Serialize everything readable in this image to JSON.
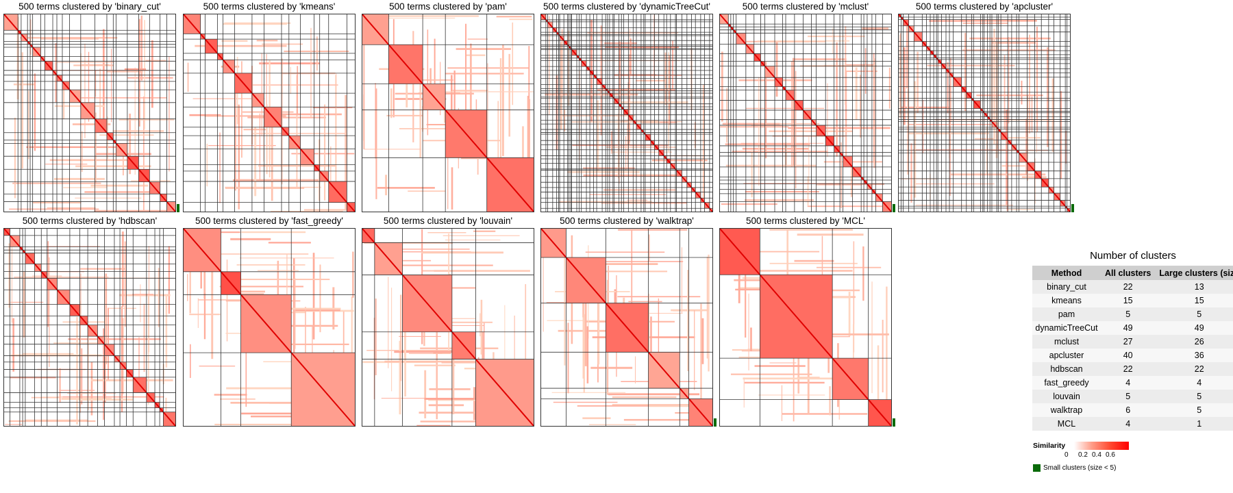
{
  "panels": [
    {
      "title": "500 terms clustered by 'binary_cut'",
      "key": "binary_cut",
      "clusters": 22,
      "small": true
    },
    {
      "title": "500 terms clustered by 'kmeans'",
      "key": "kmeans",
      "clusters": 15,
      "small": false
    },
    {
      "title": "500 terms clustered by 'pam'",
      "key": "pam",
      "clusters": 5,
      "small": false
    },
    {
      "title": "500 terms clustered by 'dynamicTreeCut'",
      "key": "dynamicTreeCut",
      "clusters": 49,
      "small": false
    },
    {
      "title": "500 terms clustered by 'mclust'",
      "key": "mclust",
      "clusters": 27,
      "small": true
    },
    {
      "title": "500 terms clustered by 'apcluster'",
      "key": "apcluster",
      "clusters": 40,
      "small": true
    },
    {
      "title": "500 terms clustered by 'hdbscan'",
      "key": "hdbscan",
      "clusters": 22,
      "small": false
    },
    {
      "title": "500 terms clustered by 'fast_greedy'",
      "key": "fast_greedy",
      "clusters": 4,
      "small": false
    },
    {
      "title": "500 terms clustered by 'louvain'",
      "key": "louvain",
      "clusters": 5,
      "small": false
    },
    {
      "title": "500 terms clustered by 'walktrap'",
      "key": "walktrap",
      "clusters": 6,
      "small": true
    },
    {
      "title": "500 terms clustered by 'MCL'",
      "key": "MCL",
      "clusters": 4,
      "small": true
    }
  ],
  "table": {
    "title": "Number of clusters",
    "headers": [
      "Method",
      "All clusters",
      "Large clusters (size"
    ],
    "rows": [
      [
        "binary_cut",
        "22",
        "13"
      ],
      [
        "kmeans",
        "15",
        "15"
      ],
      [
        "pam",
        "5",
        "5"
      ],
      [
        "dynamicTreeCut",
        "49",
        "49"
      ],
      [
        "mclust",
        "27",
        "26"
      ],
      [
        "apcluster",
        "40",
        "36"
      ],
      [
        "hdbscan",
        "22",
        "22"
      ],
      [
        "fast_greedy",
        "4",
        "4"
      ],
      [
        "louvain",
        "5",
        "5"
      ],
      [
        "walktrap",
        "6",
        "5"
      ],
      [
        "MCL",
        "4",
        "1"
      ]
    ]
  },
  "legend": {
    "title": "Similarity",
    "ticks": [
      "0",
      "0.2",
      "0.4",
      "0.6"
    ],
    "small_label": "Small clusters (size < 5)",
    "colors": {
      "low": "#ffffff",
      "high": "#ff0000",
      "small": "#0a6b0a"
    }
  },
  "chart_data": {
    "type": "heatmap",
    "n_terms": 500,
    "similarity_range": [
      0,
      0.6
    ],
    "methods": [
      "binary_cut",
      "kmeans",
      "pam",
      "dynamicTreeCut",
      "mclust",
      "apcluster",
      "hdbscan",
      "fast_greedy",
      "louvain",
      "walktrap",
      "MCL"
    ],
    "all_clusters": [
      22,
      15,
      5,
      49,
      27,
      40,
      22,
      4,
      5,
      6,
      4
    ],
    "large_clusters": [
      13,
      15,
      5,
      49,
      26,
      36,
      22,
      4,
      5,
      5,
      1
    ]
  }
}
